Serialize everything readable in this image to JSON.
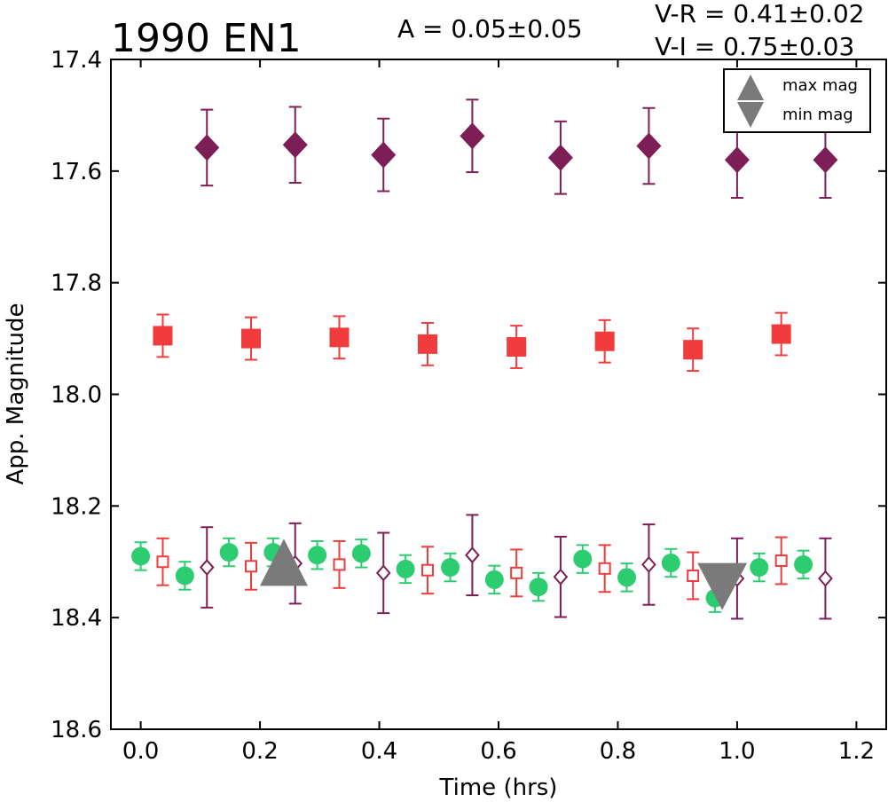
{
  "header": {
    "title": "1990 EN1",
    "amplitude": "A  = 0.05±0.05",
    "color_vr": "V-R = 0.41±0.02",
    "color_vi": "V-I  = 0.75±0.03"
  },
  "chart_data": {
    "type": "scatter",
    "title": "1990 EN1",
    "xlabel": "Time (hrs)",
    "ylabel": "App. Magnitude",
    "xlim": [
      -0.05,
      1.25
    ],
    "ylim": [
      18.6,
      17.4
    ],
    "y_inverted": true,
    "grid": false,
    "xticks": [
      "0.0",
      "0.2",
      "0.4",
      "0.6",
      "0.8",
      "1.0",
      "1.2"
    ],
    "yticks": [
      "17.4",
      "17.6",
      "17.8",
      "18.0",
      "18.2",
      "18.4",
      "18.6"
    ],
    "legend": {
      "placement": "top-right",
      "entries": [
        "max mag",
        "min mag"
      ]
    },
    "colors": {
      "green": "#2ecc71",
      "red": "#f03c3c",
      "purple": "#7e1e56",
      "gray": "#7a7a7a"
    },
    "series": [
      {
        "marker": "filled-diamond",
        "color": "#7e1e56",
        "points": [
          {
            "x": 0.111,
            "y": 17.558,
            "err": 0.068
          },
          {
            "x": 0.259,
            "y": 17.553,
            "err": 0.068
          },
          {
            "x": 0.407,
            "y": 17.571,
            "err": 0.065
          },
          {
            "x": 0.556,
            "y": 17.537,
            "err": 0.065
          },
          {
            "x": 0.704,
            "y": 17.576,
            "err": 0.065
          },
          {
            "x": 0.852,
            "y": 17.555,
            "err": 0.068
          },
          {
            "x": 1.0,
            "y": 17.58,
            "err": 0.068
          },
          {
            "x": 1.148,
            "y": 17.58,
            "err": 0.068
          }
        ]
      },
      {
        "marker": "filled-square",
        "color": "#f03c3c",
        "points": [
          {
            "x": 0.037,
            "y": 17.895,
            "err": 0.038
          },
          {
            "x": 0.185,
            "y": 17.9,
            "err": 0.038
          },
          {
            "x": 0.333,
            "y": 17.898,
            "err": 0.038
          },
          {
            "x": 0.481,
            "y": 17.91,
            "err": 0.038
          },
          {
            "x": 0.63,
            "y": 17.915,
            "err": 0.038
          },
          {
            "x": 0.778,
            "y": 17.905,
            "err": 0.038
          },
          {
            "x": 0.926,
            "y": 17.92,
            "err": 0.038
          },
          {
            "x": 1.074,
            "y": 17.892,
            "err": 0.038
          }
        ]
      },
      {
        "marker": "filled-circle",
        "color": "#2ecc71",
        "points": [
          {
            "x": 0.0,
            "y": 18.29,
            "err": 0.025
          },
          {
            "x": 0.074,
            "y": 18.325,
            "err": 0.025
          },
          {
            "x": 0.148,
            "y": 18.283,
            "err": 0.025
          },
          {
            "x": 0.222,
            "y": 18.283,
            "err": 0.025
          },
          {
            "x": 0.296,
            "y": 18.288,
            "err": 0.025
          },
          {
            "x": 0.37,
            "y": 18.285,
            "err": 0.025
          },
          {
            "x": 0.444,
            "y": 18.313,
            "err": 0.025
          },
          {
            "x": 0.519,
            "y": 18.31,
            "err": 0.025
          },
          {
            "x": 0.593,
            "y": 18.332,
            "err": 0.025
          },
          {
            "x": 0.667,
            "y": 18.345,
            "err": 0.025
          },
          {
            "x": 0.741,
            "y": 18.295,
            "err": 0.025
          },
          {
            "x": 0.815,
            "y": 18.328,
            "err": 0.025
          },
          {
            "x": 0.889,
            "y": 18.302,
            "err": 0.025
          },
          {
            "x": 0.963,
            "y": 18.365,
            "err": 0.025
          },
          {
            "x": 1.037,
            "y": 18.31,
            "err": 0.025
          },
          {
            "x": 1.111,
            "y": 18.305,
            "err": 0.025
          }
        ]
      },
      {
        "marker": "open-square",
        "color": "#f03c3c",
        "points": [
          {
            "x": 0.037,
            "y": 18.3,
            "err": 0.042
          },
          {
            "x": 0.185,
            "y": 18.308,
            "err": 0.042
          },
          {
            "x": 0.333,
            "y": 18.305,
            "err": 0.042
          },
          {
            "x": 0.481,
            "y": 18.315,
            "err": 0.042
          },
          {
            "x": 0.63,
            "y": 18.32,
            "err": 0.042
          },
          {
            "x": 0.778,
            "y": 18.312,
            "err": 0.042
          },
          {
            "x": 0.926,
            "y": 18.325,
            "err": 0.042
          },
          {
            "x": 1.074,
            "y": 18.298,
            "err": 0.042
          }
        ]
      },
      {
        "marker": "open-diamond",
        "color": "#7e1e56",
        "points": [
          {
            "x": 0.111,
            "y": 18.31,
            "err": 0.072
          },
          {
            "x": 0.259,
            "y": 18.303,
            "err": 0.072
          },
          {
            "x": 0.407,
            "y": 18.32,
            "err": 0.072
          },
          {
            "x": 0.556,
            "y": 18.288,
            "err": 0.072
          },
          {
            "x": 0.704,
            "y": 18.327,
            "err": 0.072
          },
          {
            "x": 0.852,
            "y": 18.305,
            "err": 0.072
          },
          {
            "x": 1.0,
            "y": 18.33,
            "err": 0.072
          },
          {
            "x": 1.148,
            "y": 18.33,
            "err": 0.072
          }
        ]
      }
    ],
    "max_mag": {
      "x": 0.24,
      "y": 18.305
    },
    "min_mag": {
      "x": 0.975,
      "y": 18.345
    }
  }
}
